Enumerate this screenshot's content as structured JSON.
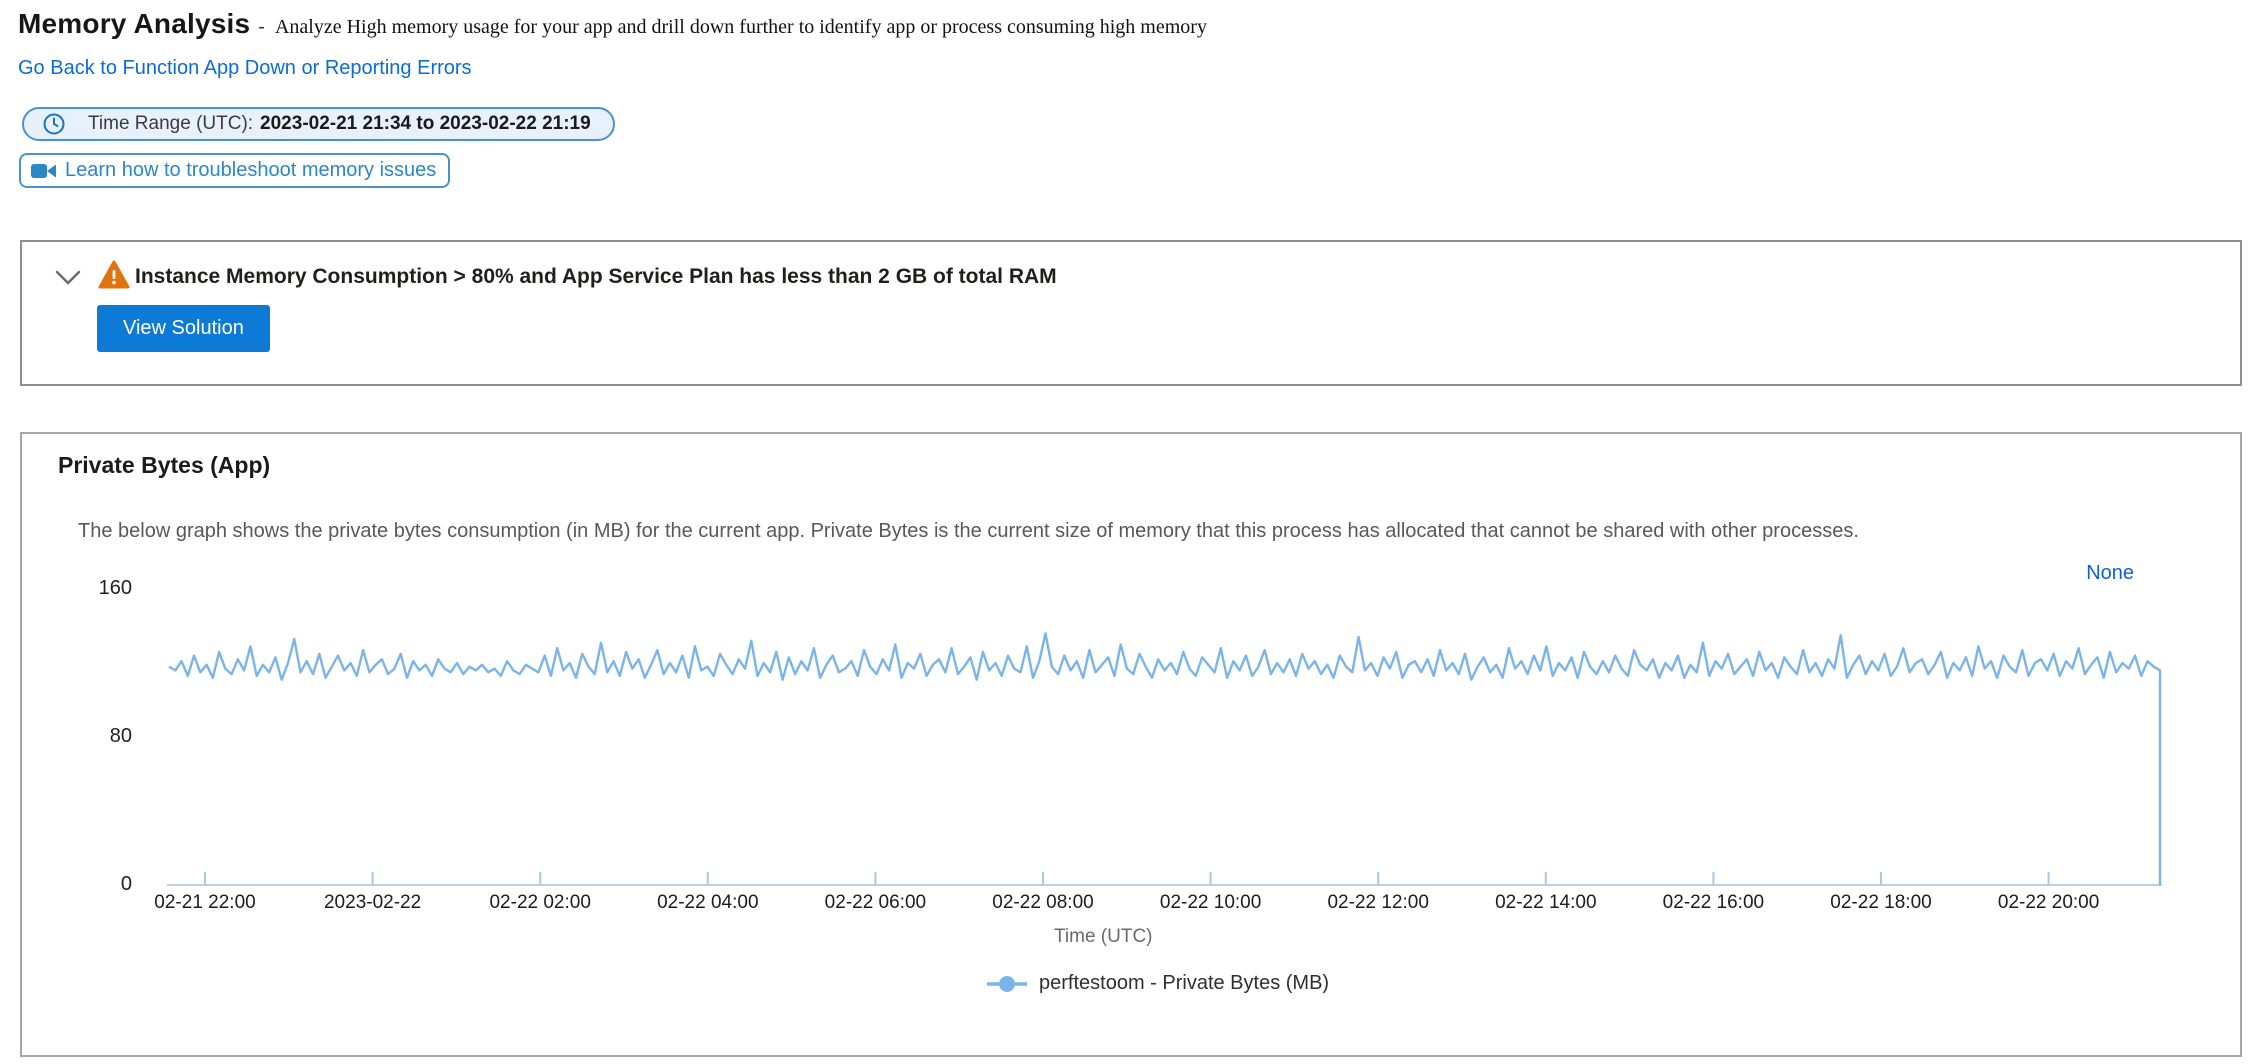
{
  "page": {
    "title": "Memory Analysis",
    "title_separator": "-",
    "subtitle": "Analyze High memory usage for your app and drill down further to identify app or process consuming high memory",
    "back_link": "Go Back to Function App Down or Reporting Errors",
    "time_range_label": "Time Range (UTC):",
    "time_range_value": "2023-02-21 21:34 to 2023-02-22 21:19",
    "video_button_label": "Learn how to troubleshoot memory issues"
  },
  "alert": {
    "title": "Instance Memory Consumption > 80% and App Service Plan has less than 2 GB of total RAM",
    "button_label": "View Solution"
  },
  "chart_section": {
    "title": "Private Bytes (App)",
    "description": "The below graph shows the private bytes consumption (in MB) for the current app. Private Bytes is the current size of memory that this process has allocated that cannot be shared with other processes.",
    "none_link": "None"
  },
  "colors": {
    "accent_blue": "#0d7ad6",
    "link_blue": "#0b6cd4",
    "pill_border_blue": "#4a90d5",
    "pill_bg": "#e7f1fb",
    "video_btn_blue": "#2b87c6",
    "warning_orange": "#e0730e",
    "series_line_blue": "#7ab4e8",
    "axis_blue_gray": "#bccee3"
  },
  "chart_data": {
    "type": "line",
    "title": "Private Bytes (App)",
    "xlabel": "Time (UTC)",
    "ylabel": "",
    "ylim": [
      0,
      160
    ],
    "y_ticks": [
      0,
      80,
      160
    ],
    "x_range": [
      "2023-02-21 21:34",
      "2023-02-22 21:19"
    ],
    "x_tick_labels": [
      "02-21 22:00",
      "2023-02-22",
      "02-22 02:00",
      "02-22 04:00",
      "02-22 06:00",
      "02-22 08:00",
      "02-22 10:00",
      "02-22 12:00",
      "02-22 14:00",
      "02-22 16:00",
      "02-22 18:00",
      "02-22 20:00"
    ],
    "grid": false,
    "legend_position": "bottom",
    "legend": "perftestoom - Private Bytes (MB)",
    "series": [
      {
        "name": "perftestoom - Private Bytes (MB)",
        "approx_baseline_mb": 118,
        "values": [
          118,
          116,
          121,
          113,
          124,
          115,
          119,
          112,
          126,
          117,
          114,
          122,
          116,
          129,
          113,
          119,
          115,
          123,
          111,
          120,
          133,
          115,
          121,
          114,
          125,
          112,
          118,
          124,
          116,
          120,
          113,
          127,
          115,
          119,
          122,
          114,
          117,
          125,
          112,
          121,
          116,
          119,
          113,
          122,
          117,
          115,
          120,
          114,
          118,
          116,
          119,
          115,
          117,
          113,
          121,
          116,
          114,
          119,
          117,
          115,
          124,
          113,
          128,
          116,
          120,
          112,
          125,
          118,
          114,
          131,
          115,
          121,
          113,
          126,
          117,
          122,
          112,
          119,
          127,
          114,
          120,
          115,
          124,
          112,
          129,
          116,
          118,
          113,
          125,
          119,
          114,
          122,
          117,
          132,
          113,
          120,
          115,
          126,
          111,
          123,
          114,
          121,
          116,
          128,
          112,
          119,
          124,
          115,
          117,
          121,
          113,
          127,
          118,
          114,
          122,
          116,
          130,
          112,
          120,
          117,
          125,
          113,
          119,
          122,
          115,
          128,
          114,
          118,
          123,
          111,
          126,
          116,
          120,
          113,
          124,
          117,
          115,
          129,
          112,
          121,
          136,
          118,
          114,
          124,
          116,
          121,
          112,
          127,
          115,
          119,
          123,
          113,
          130,
          117,
          114,
          125,
          118,
          112,
          122,
          116,
          120,
          114,
          126,
          117,
          113,
          123,
          119,
          115,
          128,
          112,
          121,
          116,
          124,
          113,
          118,
          127,
          114,
          120,
          115,
          122,
          113,
          125,
          117,
          121,
          114,
          119,
          112,
          124,
          118,
          115,
          134,
          116,
          120,
          113,
          123,
          117,
          126,
          112,
          119,
          121,
          115,
          122,
          113,
          127,
          116,
          120,
          114,
          125,
          111,
          118,
          123,
          115,
          119,
          112,
          128,
          117,
          121,
          114,
          124,
          116,
          129,
          113,
          120,
          116,
          123,
          112,
          126,
          118,
          114,
          121,
          115,
          124,
          117,
          113,
          127,
          119,
          116,
          122,
          112,
          120,
          116,
          124,
          112,
          119,
          115,
          131,
          113,
          121,
          117,
          125,
          114,
          118,
          122,
          113,
          126,
          116,
          120,
          112,
          123,
          118,
          114,
          127,
          115,
          120,
          113,
          122,
          117,
          135,
          112,
          119,
          124,
          114,
          121,
          116,
          125,
          113,
          118,
          128,
          115,
          120,
          122,
          114,
          119,
          126,
          112,
          120,
          116,
          123,
          113,
          129,
          117,
          121,
          112,
          124,
          118,
          115,
          127,
          113,
          120,
          122,
          116,
          125,
          113,
          121,
          117,
          128,
          114,
          119,
          123,
          112,
          126,
          115,
          120,
          117,
          124,
          113,
          121,
          118,
          116,
          0
        ]
      }
    ]
  }
}
